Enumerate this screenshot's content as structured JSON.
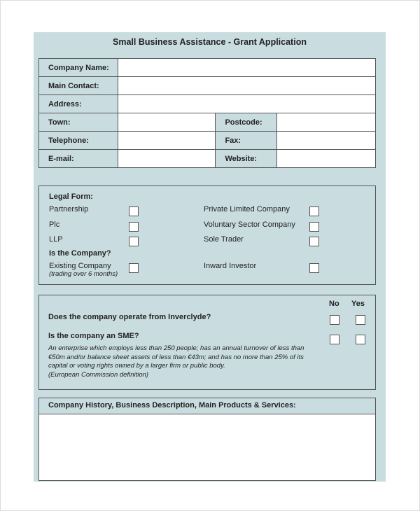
{
  "title": "Small Business Assistance - Grant Application",
  "contact": {
    "company_name": "Company Name:",
    "main_contact": "Main Contact:",
    "address": "Address:",
    "town": "Town:",
    "postcode": "Postcode:",
    "telephone": "Telephone:",
    "fax": "Fax:",
    "email": "E-mail:",
    "website": "Website:"
  },
  "legal": {
    "heading": "Legal Form:",
    "options": [
      "Partnership",
      "Plc",
      "LLP",
      "Private Limited Company",
      "Voluntary Sector Company",
      "Sole Trader"
    ],
    "is_company": "Is the Company?",
    "existing": "Existing Company",
    "existing_note": "(trading over 6 months)",
    "inward": "Inward Investor"
  },
  "questions": {
    "no": "No",
    "yes": "Yes",
    "q1": "Does the company operate from Inverclyde?",
    "q2": "Is the company an SME?",
    "sme_lines": [
      "An enterprise which employs less than 250 people; has an annual turnover of less than",
      "€50m and/or balance sheet assets of less than €43m; and has no more than 25% of its",
      "capital or voting rights owned by a larger firm or public body.",
      "(European Commission definition)"
    ]
  },
  "history": {
    "heading": "Company History, Business Description, Main Products & Services:"
  }
}
